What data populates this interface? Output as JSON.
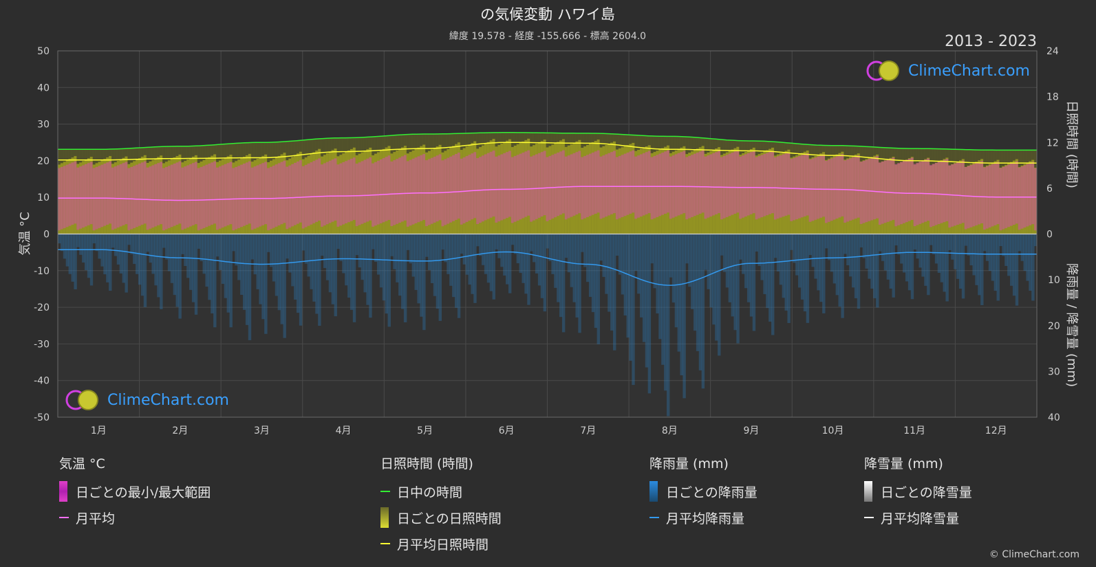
{
  "header": {
    "title": "の気候変動 ハワイ島",
    "subtitle": "緯度 19.578 - 経度 -155.666 - 標高 2604.0",
    "period": "2013 - 2023"
  },
  "logo_text": "ClimeChart.com",
  "copyright": "© ClimeChart.com",
  "colors": {
    "background": "#2d2d2d",
    "temp_range": "#e040c8",
    "temp_avg": "#ff70ff",
    "daylight": "#33ee33",
    "sunshine_fill": "#a8a820",
    "sunshine_avg": "#ffff33",
    "rain_fill": "#2b7bb9",
    "rain_avg": "#3399ee",
    "snow": "#ffffff"
  },
  "legend": {
    "temp": {
      "title": "気温 °C",
      "range_label": "日ごとの最小/最大範囲",
      "avg_label": "月平均"
    },
    "sun": {
      "title": "日照時間 (時間)",
      "daylight_label": "日中の時間",
      "daily_label": "日ごとの日照時間",
      "avg_label": "月平均日照時間"
    },
    "rain": {
      "title": "降雨量 (mm)",
      "daily_label": "日ごとの降雨量",
      "avg_label": "月平均降雨量"
    },
    "snow": {
      "title": "降雪量 (mm)",
      "daily_label": "日ごとの降雪量",
      "avg_label": "月平均降雪量"
    }
  },
  "chart_data": {
    "type": "line",
    "categories": [
      "1月",
      "2月",
      "3月",
      "4月",
      "5月",
      "6月",
      "7月",
      "8月",
      "9月",
      "10月",
      "11月",
      "12月"
    ],
    "left_axis": {
      "label": "気温 °C",
      "ylim": [
        -50,
        50
      ],
      "ticks": [
        50,
        40,
        30,
        20,
        10,
        0,
        -10,
        -20,
        -30,
        -40,
        -50
      ]
    },
    "right_axis_top": {
      "label": "日照時間 (時間)",
      "ylim": [
        0,
        24
      ],
      "ticks": [
        24,
        18,
        12,
        6,
        0
      ]
    },
    "right_axis_bottom": {
      "label": "降雨量 / 降雪量 (mm)",
      "ylim": [
        0,
        40
      ],
      "ticks": [
        10,
        20,
        30,
        40
      ]
    },
    "grid": true,
    "series": [
      {
        "name": "日中の時間",
        "axis": "sunshine_hours",
        "values": [
          11.1,
          11.5,
          12.0,
          12.6,
          13.1,
          13.3,
          13.2,
          12.8,
          12.2,
          11.6,
          11.2,
          11.0
        ]
      },
      {
        "name": "月平均日照時間",
        "axis": "sunshine_hours",
        "values": [
          9.7,
          9.9,
          10.0,
          10.8,
          11.2,
          12.0,
          11.9,
          11.1,
          10.9,
          10.3,
          9.6,
          9.3
        ]
      },
      {
        "name": "月平均",
        "axis": "temperature_c",
        "values": [
          9.8,
          9.2,
          9.7,
          10.4,
          11.2,
          12.2,
          13.0,
          13.0,
          12.7,
          12.2,
          11.1,
          10.1
        ]
      },
      {
        "name": "月平均降雨量",
        "axis": "precipitation_mm",
        "values": [
          3.4,
          5.2,
          6.6,
          5.4,
          5.9,
          3.9,
          6.6,
          11.2,
          6.4,
          5.2,
          4.0,
          4.4
        ]
      },
      {
        "name": "月平均降雪量",
        "axis": "precipitation_mm",
        "values": [
          0,
          0,
          0,
          0,
          0,
          0,
          0,
          0,
          0,
          0,
          0,
          0
        ]
      }
    ],
    "daily_temp_band": {
      "min": [
        2,
        2,
        2,
        3,
        3,
        4,
        5,
        5,
        5,
        4,
        3,
        2
      ],
      "max": [
        19,
        19,
        19,
        20,
        21,
        22,
        22,
        22,
        22,
        21,
        20,
        19
      ]
    }
  }
}
